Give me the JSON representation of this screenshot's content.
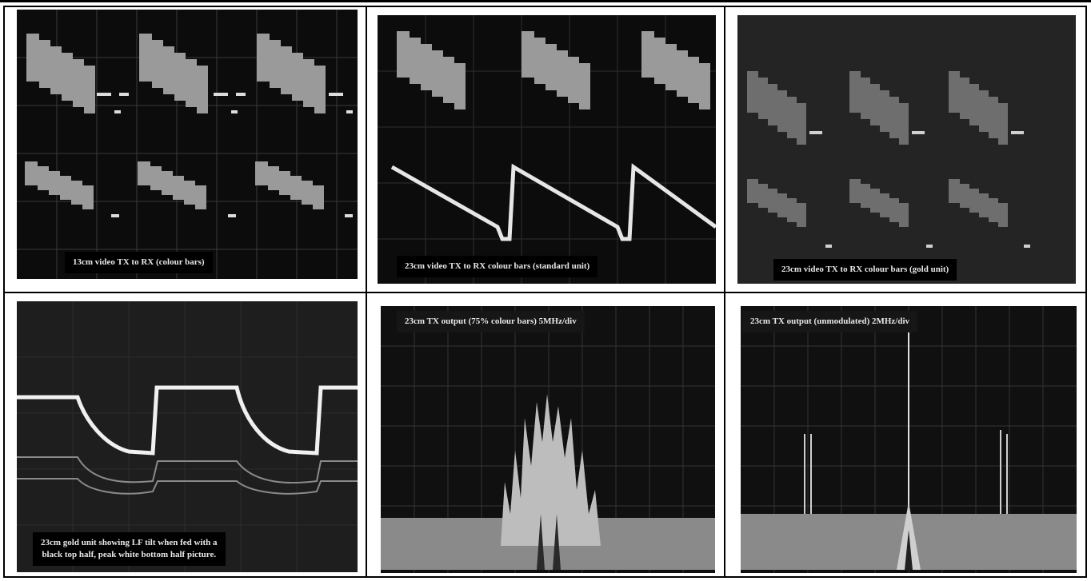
{
  "panels": [
    {
      "caption": "13cm video TX to RX (colour bars)"
    },
    {
      "caption": "23cm video TX to RX colour bars (standard unit)"
    },
    {
      "caption": "23cm video TX to RX colour bars (gold unit)"
    },
    {
      "caption_line1": "23cm gold unit showing LF tilt when fed with a",
      "caption_line2": "black top half, peak white bottom half picture."
    },
    {
      "caption": "23cm TX output (75% colour bars) 5MHz/div"
    },
    {
      "caption": "23cm TX output (unmodulated) 2MHz/div"
    }
  ],
  "colors": {
    "background": "#ffffff",
    "border": "#000000",
    "screen": "#0c0c0c",
    "trace": "#e6e6e6"
  }
}
